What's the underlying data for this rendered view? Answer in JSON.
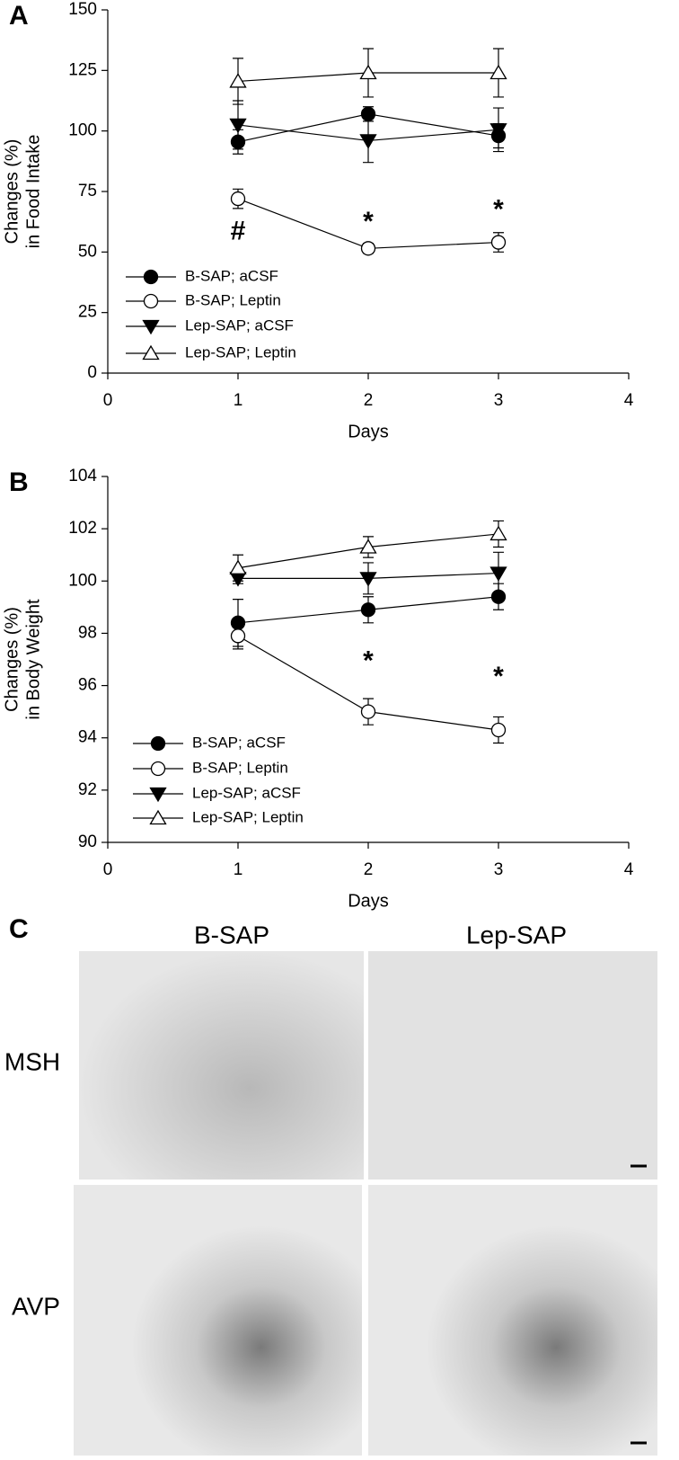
{
  "chart_data": [
    {
      "type": "line",
      "panel": "A",
      "ylabel": [
        "Changes (%)",
        "in Food Intake"
      ],
      "xlabel": "Days",
      "x": [
        1,
        2,
        3
      ],
      "xlim": [
        0,
        4
      ],
      "xticks": [
        0,
        1,
        2,
        3,
        4
      ],
      "ylim": [
        0,
        150
      ],
      "yticks": [
        0,
        25,
        50,
        75,
        100,
        125,
        150
      ],
      "series": [
        {
          "name": "B-SAP; aCSF",
          "marker": "circle-filled",
          "color": "#000000",
          "values": [
            95.5,
            107,
            98
          ],
          "errors": [
            5,
            3,
            5
          ]
        },
        {
          "name": "B-SAP; Leptin",
          "marker": "circle-open",
          "color": "#000000",
          "values": [
            72,
            51.5,
            54
          ],
          "errors": [
            4,
            2,
            4
          ]
        },
        {
          "name": "Lep-SAP; aCSF",
          "marker": "triangle-down-filled",
          "color": "#000000",
          "values": [
            102.5,
            96,
            100.5
          ],
          "errors": [
            10,
            9,
            9
          ]
        },
        {
          "name": "Lep-SAP; Leptin",
          "marker": "triangle-up-open",
          "color": "#000000",
          "values": [
            120.5,
            124,
            124
          ],
          "errors": [
            9.5,
            10,
            10
          ]
        }
      ],
      "annotations": [
        {
          "text": "#",
          "x": 1,
          "y": 58
        },
        {
          "text": "*",
          "x": 2,
          "y": 62
        },
        {
          "text": "*",
          "x": 3,
          "y": 67
        }
      ]
    },
    {
      "type": "line",
      "panel": "B",
      "ylabel": [
        "Changes (%)",
        "in Body Weight"
      ],
      "xlabel": "Days",
      "x": [
        1,
        2,
        3
      ],
      "xlim": [
        0,
        4
      ],
      "xticks": [
        0,
        1,
        2,
        3,
        4
      ],
      "ylim": [
        90,
        104
      ],
      "yticks": [
        90,
        92,
        94,
        96,
        98,
        100,
        102,
        104
      ],
      "series": [
        {
          "name": "B-SAP; aCSF",
          "marker": "circle-filled",
          "color": "#000000",
          "values": [
            98.4,
            98.9,
            99.4
          ],
          "errors": [
            0.9,
            0.5,
            0.5
          ]
        },
        {
          "name": "B-SAP; Leptin",
          "marker": "circle-open",
          "color": "#000000",
          "values": [
            97.9,
            95.0,
            94.3
          ],
          "errors": [
            0.5,
            0.5,
            0.5
          ]
        },
        {
          "name": "Lep-SAP; aCSF",
          "marker": "triangle-down-filled",
          "color": "#000000",
          "values": [
            100.1,
            100.1,
            100.3
          ],
          "errors": [
            0.2,
            0.6,
            0.8
          ]
        },
        {
          "name": "Lep-SAP; Leptin",
          "marker": "triangle-up-open",
          "color": "#000000",
          "values": [
            100.5,
            101.3,
            101.8
          ],
          "errors": [
            0.5,
            0.4,
            0.5
          ]
        }
      ],
      "annotations": [
        {
          "text": "*",
          "x": 2,
          "y": 96.9
        },
        {
          "text": "*",
          "x": 3,
          "y": 96.3
        }
      ]
    }
  ],
  "micrographs": {
    "panel": "C",
    "columns": [
      "B-SAP",
      "Lep-SAP"
    ],
    "rows": [
      "MSH",
      "AVP"
    ]
  }
}
